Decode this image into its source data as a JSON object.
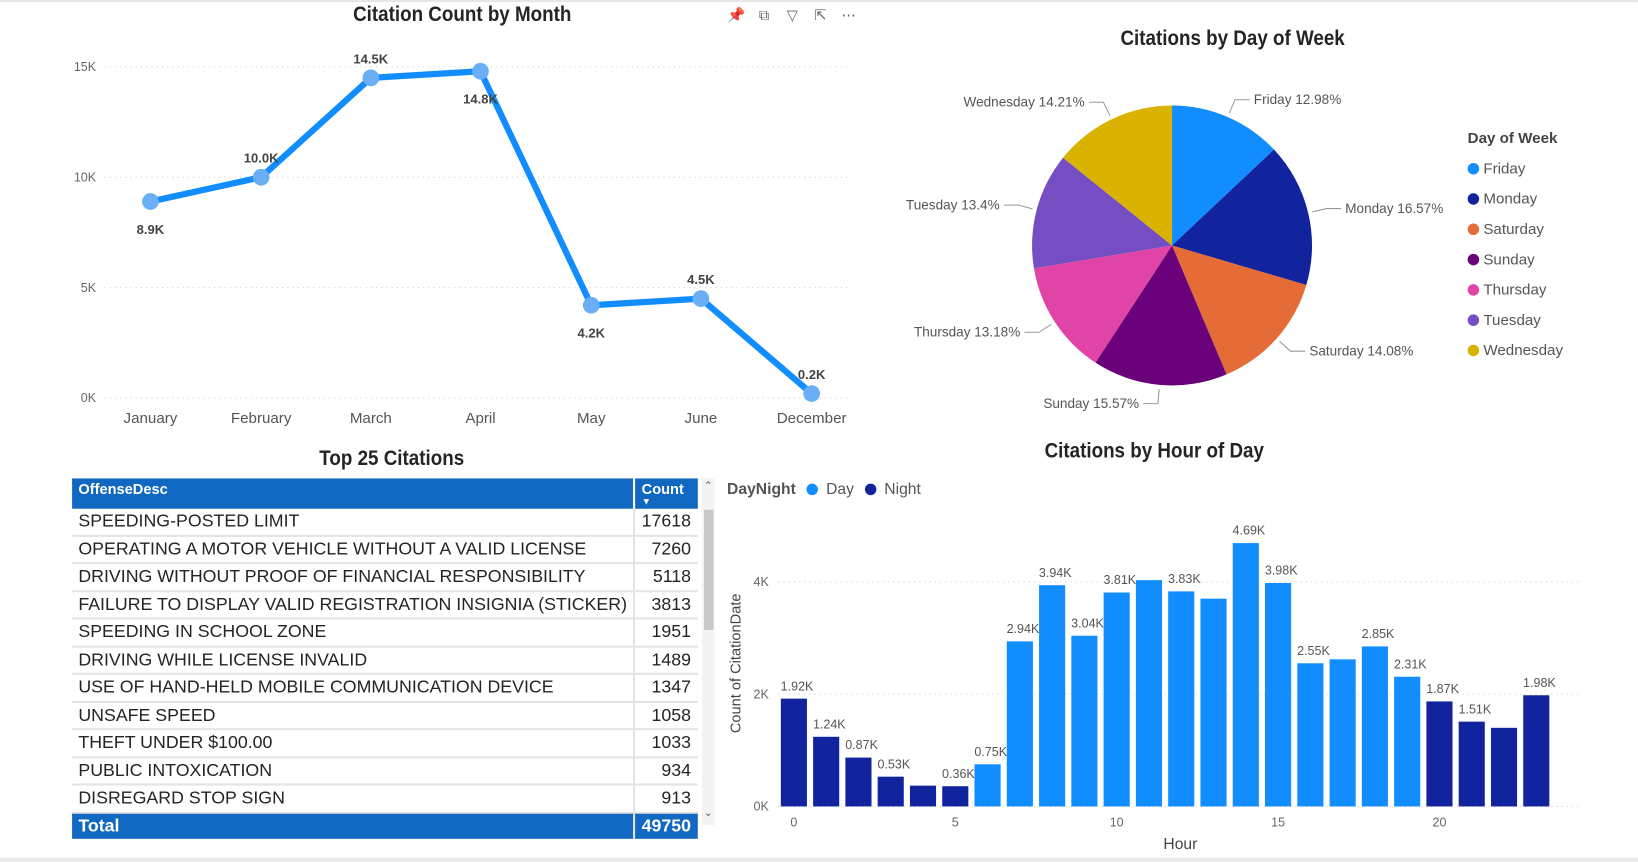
{
  "visual_header_icons": [
    "pin-icon",
    "copy-icon",
    "filter-icon",
    "focus-mode-icon",
    "more-options-icon"
  ],
  "line_chart": {
    "title": "Citation Count by Month",
    "chart_data": {
      "type": "line",
      "categories": [
        "January",
        "February",
        "March",
        "April",
        "May",
        "June",
        "December"
      ],
      "values": [
        8900,
        10000,
        14500,
        14800,
        4200,
        4500,
        200
      ],
      "data_labels": [
        "8.9K",
        "10.0K",
        "14.5K",
        "14.8K",
        "4.2K",
        "4.5K",
        "0.2K"
      ],
      "yticks": [
        "0K",
        "5K",
        "10K",
        "15K"
      ],
      "ylim": [
        0,
        15000
      ],
      "grid": true,
      "color": "#118dff"
    }
  },
  "pie_chart": {
    "title": "Citations by Day of Week",
    "legend_title": "Day of Week",
    "chart_data": {
      "type": "pie",
      "labels": [
        "Friday",
        "Monday",
        "Saturday",
        "Sunday",
        "Thursday",
        "Tuesday",
        "Wednesday"
      ],
      "values": [
        12.98,
        16.57,
        14.08,
        15.57,
        13.18,
        13.4,
        14.21
      ],
      "data_labels": [
        "Friday 12.98%",
        "Monday 16.57%",
        "Saturday 14.08%",
        "Sunday 15.57%",
        "Thursday 13.18%",
        "Tuesday 13.4%",
        "Wednesday 14.21%"
      ],
      "colors": [
        "#118dff",
        "#12239e",
        "#e66c37",
        "#6b007b",
        "#e044a7",
        "#744ec2",
        "#d9b300"
      ],
      "legend": "right"
    }
  },
  "table": {
    "title": "Top 25 Citations",
    "columns": [
      "OffenseDesc",
      "Count"
    ],
    "rows": [
      [
        "SPEEDING-POSTED LIMIT",
        "17618"
      ],
      [
        "OPERATING A MOTOR VEHICLE WITHOUT A VALID LICENSE",
        "7260"
      ],
      [
        "DRIVING WITHOUT PROOF OF FINANCIAL RESPONSIBILITY",
        "5118"
      ],
      [
        "FAILURE TO DISPLAY VALID REGISTRATION INSIGNIA (STICKER)",
        "3813"
      ],
      [
        "SPEEDING IN SCHOOL ZONE",
        "1951"
      ],
      [
        "DRIVING WHILE LICENSE INVALID",
        "1489"
      ],
      [
        "USE OF HAND-HELD MOBILE COMMUNICATION DEVICE",
        "1347"
      ],
      [
        "UNSAFE SPEED",
        "1058"
      ],
      [
        "THEFT UNDER $100.00",
        "1033"
      ],
      [
        "PUBLIC INTOXICATION",
        "934"
      ],
      [
        "DISREGARD STOP SIGN",
        "913"
      ]
    ],
    "total_label": "Total",
    "total_value": "49750",
    "header_color": "#1068c0"
  },
  "bar_chart": {
    "title": "Citations by Hour of Day",
    "legend_title": "DayNight",
    "chart_data": {
      "type": "bar",
      "xlabel": "Hour",
      "ylabel": "Count of CitationDate",
      "xticks": [
        "0",
        "5",
        "10",
        "15",
        "20"
      ],
      "yticks": [
        "0K",
        "2K",
        "4K"
      ],
      "ylim": [
        0,
        4800
      ],
      "grid": true,
      "legend": "top-left",
      "series": [
        {
          "name": "Day",
          "color": "#118dff"
        },
        {
          "name": "Night",
          "color": "#12239e"
        }
      ],
      "x": [
        0,
        1,
        2,
        3,
        4,
        5,
        6,
        7,
        8,
        9,
        10,
        11,
        12,
        13,
        14,
        15,
        16,
        17,
        18,
        19,
        20,
        21,
        22,
        23
      ],
      "values": [
        1920,
        1240,
        870,
        530,
        370,
        360,
        750,
        2940,
        3940,
        3040,
        3810,
        4030,
        3830,
        3700,
        4690,
        3980,
        2550,
        2620,
        2850,
        2310,
        1870,
        1510,
        1400,
        1980
      ],
      "daynight": [
        "Night",
        "Night",
        "Night",
        "Night",
        "Night",
        "Night",
        "Day",
        "Day",
        "Day",
        "Day",
        "Day",
        "Day",
        "Day",
        "Day",
        "Day",
        "Day",
        "Day",
        "Day",
        "Day",
        "Day",
        "Night",
        "Night",
        "Night",
        "Night"
      ],
      "data_labels": [
        "1.92K",
        "1.24K",
        "0.87K",
        "0.53K",
        "",
        "0.36K",
        "0.75K",
        "2.94K",
        "3.94K",
        "3.04K",
        "3.81K",
        "",
        "3.83K",
        "",
        "4.69K",
        "3.98K",
        "2.55K",
        "",
        "2.85K",
        "2.31K",
        "1.87K",
        "1.51K",
        "",
        "1.98K"
      ]
    }
  }
}
